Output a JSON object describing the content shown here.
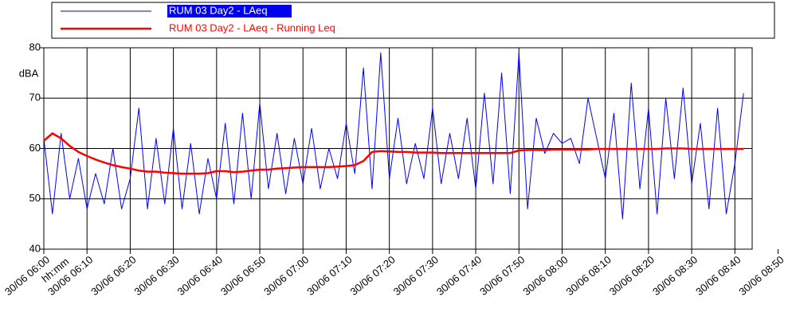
{
  "chart_data": {
    "type": "line",
    "ylabel": "dBA",
    "xlabel": "hh:mm",
    "x": [
      "30/06 06:00",
      "30/06 06:02",
      "30/06 06:04",
      "30/06 06:06",
      "30/06 06:08",
      "30/06 06:10",
      "30/06 06:12",
      "30/06 06:14",
      "30/06 06:16",
      "30/06 06:18",
      "30/06 06:20",
      "30/06 06:22",
      "30/06 06:24",
      "30/06 06:26",
      "30/06 06:28",
      "30/06 06:30",
      "30/06 06:32",
      "30/06 06:34",
      "30/06 06:36",
      "30/06 06:38",
      "30/06 06:40",
      "30/06 06:42",
      "30/06 06:44",
      "30/06 06:46",
      "30/06 06:48",
      "30/06 06:50",
      "30/06 06:52",
      "30/06 06:54",
      "30/06 06:56",
      "30/06 06:58",
      "30/06 07:00",
      "30/06 07:02",
      "30/06 07:04",
      "30/06 07:06",
      "30/06 07:08",
      "30/06 07:10",
      "30/06 07:12",
      "30/06 07:14",
      "30/06 07:16",
      "30/06 07:18",
      "30/06 07:20",
      "30/06 07:22",
      "30/06 07:24",
      "30/06 07:26",
      "30/06 07:28",
      "30/06 07:30",
      "30/06 07:32",
      "30/06 07:34",
      "30/06 07:36",
      "30/06 07:38",
      "30/06 07:40",
      "30/06 07:42",
      "30/06 07:44",
      "30/06 07:46",
      "30/06 07:48",
      "30/06 07:50",
      "30/06 07:52",
      "30/06 07:54",
      "30/06 07:56",
      "30/06 07:58",
      "30/06 08:00",
      "30/06 08:02",
      "30/06 08:04",
      "30/06 08:06",
      "30/06 08:08",
      "30/06 08:10",
      "30/06 08:12",
      "30/06 08:14",
      "30/06 08:16",
      "30/06 08:18",
      "30/06 08:20",
      "30/06 08:22",
      "30/06 08:24",
      "30/06 08:26",
      "30/06 08:28",
      "30/06 08:30",
      "30/06 08:32",
      "30/06 08:34",
      "30/06 08:36",
      "30/06 08:38",
      "30/06 08:40",
      "30/06 08:42"
    ],
    "series": [
      {
        "name": "RUM 03 Day2 - LAeq",
        "color": "#0000ff",
        "width": 1,
        "values": [
          62,
          47,
          63,
          50,
          58,
          48,
          55,
          49,
          60,
          48,
          54,
          68,
          48,
          62,
          49,
          64,
          48,
          61,
          47,
          58,
          50,
          65,
          49,
          67,
          50,
          69,
          52,
          63,
          51,
          62,
          53,
          64,
          52,
          60,
          54,
          65,
          55,
          76,
          52,
          79,
          54,
          66,
          53,
          61,
          54,
          68,
          53,
          63,
          54,
          66,
          52,
          71,
          53,
          75,
          51,
          79,
          48,
          66,
          59,
          63,
          61,
          62,
          57,
          70,
          62,
          54,
          67,
          46,
          73,
          52,
          68,
          47,
          70,
          54,
          72,
          53,
          65,
          48,
          68,
          47,
          57,
          71
        ]
      },
      {
        "name": "RUM 03 Day2 - LAeq - Running Leq",
        "color": "#ff0000",
        "width": 2.5,
        "values": [
          61.5,
          63,
          62,
          60.5,
          59.3,
          58.5,
          57.8,
          57.2,
          56.7,
          56.3,
          56,
          55.6,
          55.4,
          55.4,
          55.2,
          55.1,
          55,
          55,
          55,
          55.1,
          55.5,
          55.5,
          55.3,
          55.4,
          55.6,
          55.8,
          55.8,
          56,
          56.1,
          56.2,
          56.3,
          56.3,
          56.3,
          56.3,
          56.4,
          56.5,
          56.7,
          57.5,
          59.3,
          59.5,
          59.4,
          59.3,
          59.3,
          59.2,
          59.2,
          59.2,
          59.1,
          59.1,
          59.1,
          59.1,
          59.1,
          59.1,
          59.1,
          59.1,
          59.1,
          59.6,
          59.7,
          59.7,
          59.7,
          59.8,
          59.8,
          59.8,
          59.8,
          59.8,
          59.9,
          59.9,
          59.9,
          59.9,
          59.9,
          59.9,
          59.9,
          59.9,
          60,
          60,
          60,
          59.9,
          59.9,
          59.9,
          59.9,
          59.9,
          59.9,
          59.9
        ]
      }
    ],
    "xlim": [
      "30/06 06:00",
      "30/06 08:44"
    ],
    "xticks": [
      "30/06 06:00",
      "30/06 06:10",
      "30/06 06:20",
      "30/06 06:30",
      "30/06 06:40",
      "30/06 06:50",
      "30/06 07:00",
      "30/06 07:10",
      "30/06 07:20",
      "30/06 07:30",
      "30/06 07:40",
      "30/06 07:50",
      "30/06 08:00",
      "30/06 08:10",
      "30/06 08:20",
      "30/06 08:30",
      "30/06 08:40",
      "30/06 08:50"
    ],
    "ylim": [
      40,
      80
    ],
    "yticks": [
      40,
      50,
      60,
      70,
      80
    ],
    "grid": true
  }
}
